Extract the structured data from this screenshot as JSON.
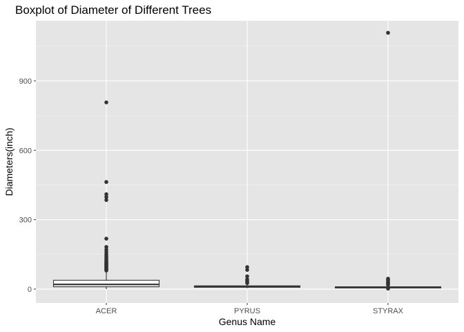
{
  "chart_data": {
    "type": "boxplot",
    "title": "Boxplot of Diameter of Different Trees",
    "xlabel": "Genus Name",
    "ylabel": "Diameters(inch)",
    "ylim": [
      -60,
      1160
    ],
    "yticks": [
      0,
      300,
      600,
      900
    ],
    "grid": true,
    "legend": "none",
    "colors": {
      "panel": "#e5e5e5",
      "grid_major": "#ffffff",
      "box_fill": "#ffffff",
      "box_line": "#333333",
      "outlier": "#333333"
    },
    "categories": [
      "ACER",
      "PYRUS",
      "STYRAX"
    ],
    "boxes": [
      {
        "category": "ACER",
        "whisker_low": 0,
        "q1": 10,
        "median": 20,
        "q3": 38,
        "whisker_high": 78,
        "outliers": [
          80,
          83,
          86,
          89,
          92,
          95,
          98,
          101,
          104,
          107,
          110,
          113,
          116,
          120,
          125,
          130,
          136,
          142,
          150,
          160,
          170,
          182,
          218,
          385,
          398,
          410,
          463,
          807
        ]
      },
      {
        "category": "PYRUS",
        "whisker_low": 4,
        "q1": 8,
        "median": 10,
        "q3": 14,
        "whisker_high": 22,
        "outliers": [
          26,
          30,
          36,
          42,
          55,
          83,
          95
        ]
      },
      {
        "category": "STYRAX",
        "whisker_low": 2,
        "q1": 5,
        "median": 7,
        "q3": 10,
        "whisker_high": 15,
        "outliers": [
          2,
          18,
          22,
          26,
          30,
          35,
          40,
          45,
          1108
        ]
      }
    ]
  }
}
